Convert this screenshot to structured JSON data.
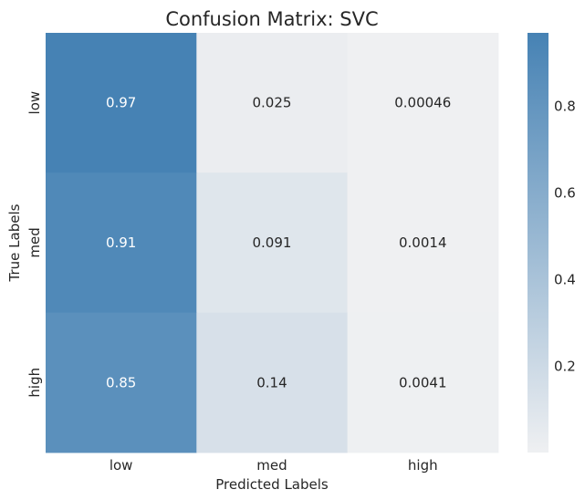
{
  "chart_data": {
    "type": "heatmap",
    "title": "Confusion Matrix: SVC",
    "xlabel": "Predicted Labels",
    "ylabel": "True Labels",
    "x_categories": [
      "low",
      "med",
      "high"
    ],
    "y_categories": [
      "low",
      "med",
      "high"
    ],
    "values": [
      [
        0.97,
        0.025,
        0.00046
      ],
      [
        0.91,
        0.091,
        0.0014
      ],
      [
        0.85,
        0.14,
        0.0041
      ]
    ],
    "value_labels": [
      [
        "0.97",
        "0.025",
        "0.00046"
      ],
      [
        "0.91",
        "0.091",
        "0.0014"
      ],
      [
        "0.85",
        "0.14",
        "0.0041"
      ]
    ],
    "colorbar": {
      "range": [
        0.00046,
        0.97
      ],
      "ticks": [
        0.2,
        0.4,
        0.6,
        0.8
      ],
      "tick_labels": [
        "0.2",
        "0.4",
        "0.6",
        "0.8"
      ],
      "color_low": "#eff0f2",
      "color_high": "#4682b4"
    },
    "grid": false
  }
}
